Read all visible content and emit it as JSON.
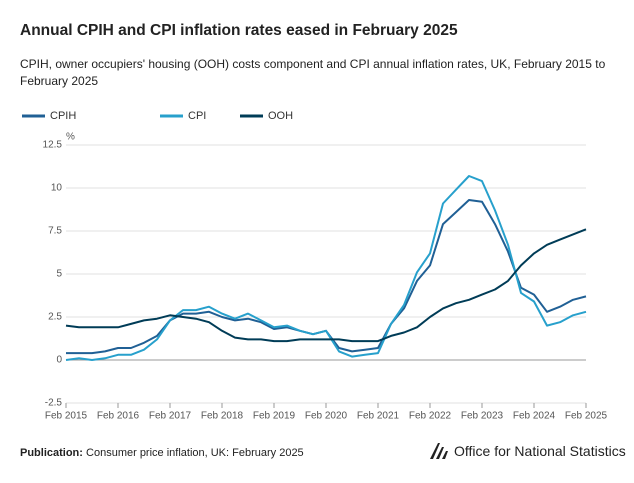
{
  "chart_data": {
    "type": "line",
    "title": "Annual CPIH and CPI inflation rates eased in February 2025",
    "subtitle": "CPIH, owner occupiers' housing (OOH) costs component and CPI annual inflation rates, UK, February 2015 to February 2025",
    "y_label": "%",
    "x": [
      "2015-02",
      "2015-05",
      "2015-08",
      "2015-11",
      "2016-02",
      "2016-05",
      "2016-08",
      "2016-11",
      "2017-02",
      "2017-05",
      "2017-08",
      "2017-11",
      "2018-02",
      "2018-05",
      "2018-08",
      "2018-11",
      "2019-02",
      "2019-05",
      "2019-08",
      "2019-11",
      "2020-02",
      "2020-05",
      "2020-08",
      "2020-11",
      "2021-02",
      "2021-05",
      "2021-08",
      "2021-11",
      "2022-02",
      "2022-05",
      "2022-08",
      "2022-11",
      "2023-02",
      "2023-05",
      "2023-08",
      "2023-11",
      "2024-02",
      "2024-05",
      "2024-08",
      "2024-11",
      "2025-02"
    ],
    "xlim": [
      "2015-02",
      "2025-02"
    ],
    "xticks": [
      {
        "value": "2015-02",
        "label": "Feb 2015"
      },
      {
        "value": "2016-02",
        "label": "Feb 2016"
      },
      {
        "value": "2017-02",
        "label": "Feb 2017"
      },
      {
        "value": "2018-02",
        "label": "Feb 2018"
      },
      {
        "value": "2019-02",
        "label": "Feb 2019"
      },
      {
        "value": "2020-02",
        "label": "Feb 2020"
      },
      {
        "value": "2021-02",
        "label": "Feb 2021"
      },
      {
        "value": "2022-02",
        "label": "Feb 2022"
      },
      {
        "value": "2023-02",
        "label": "Feb 2023"
      },
      {
        "value": "2024-02",
        "label": "Feb 2024"
      },
      {
        "value": "2025-02",
        "label": "Feb 2025"
      }
    ],
    "ylim": [
      -2.5,
      12.5
    ],
    "yticks": [
      -2.5,
      0,
      2.5,
      5,
      7.5,
      10,
      12.5
    ],
    "grid": true,
    "legend": "top-left",
    "series": [
      {
        "name": "CPIH",
        "color": "#206095",
        "values": [
          0.4,
          0.4,
          0.4,
          0.5,
          0.7,
          0.7,
          1.0,
          1.4,
          2.3,
          2.7,
          2.7,
          2.8,
          2.5,
          2.3,
          2.4,
          2.2,
          1.8,
          1.9,
          1.7,
          1.5,
          1.7,
          0.7,
          0.5,
          0.6,
          0.7,
          2.1,
          3.0,
          4.6,
          5.5,
          7.9,
          8.6,
          9.3,
          9.2,
          7.9,
          6.3,
          4.2,
          3.8,
          2.8,
          3.1,
          3.5,
          3.7
        ]
      },
      {
        "name": "CPI",
        "color": "#27a0cc",
        "values": [
          0.0,
          0.1,
          0.0,
          0.1,
          0.3,
          0.3,
          0.6,
          1.2,
          2.3,
          2.9,
          2.9,
          3.1,
          2.7,
          2.4,
          2.7,
          2.3,
          1.9,
          2.0,
          1.7,
          1.5,
          1.7,
          0.5,
          0.2,
          0.3,
          0.4,
          2.1,
          3.2,
          5.1,
          6.2,
          9.1,
          9.9,
          10.7,
          10.4,
          8.7,
          6.7,
          3.9,
          3.4,
          2.0,
          2.2,
          2.6,
          2.8
        ]
      },
      {
        "name": "OOH",
        "color": "#003c57",
        "values": [
          2.0,
          1.9,
          1.9,
          1.9,
          1.9,
          2.1,
          2.3,
          2.4,
          2.6,
          2.5,
          2.4,
          2.2,
          1.7,
          1.3,
          1.2,
          1.2,
          1.1,
          1.1,
          1.2,
          1.2,
          1.2,
          1.2,
          1.1,
          1.1,
          1.1,
          1.4,
          1.6,
          1.9,
          2.5,
          3.0,
          3.3,
          3.5,
          3.8,
          4.1,
          4.6,
          5.5,
          6.2,
          6.7,
          7.0,
          7.3,
          7.6
        ]
      }
    ]
  },
  "footer": {
    "publication_label": "Publication:",
    "publication": "Consumer price inflation, UK: February 2025",
    "logo": "Office for National Statistics"
  }
}
